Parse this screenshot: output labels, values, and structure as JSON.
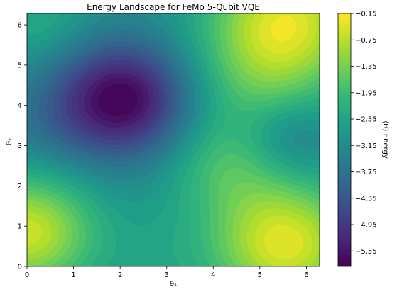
{
  "chart_data": {
    "type": "heatmap",
    "subtype": "filled-contour",
    "title": "Energy Landscape for FeMo 5-Qubit VQE",
    "xlabel": "θ₁",
    "ylabel": "θ₂",
    "colorbar_label": "⟨H⟩ Energy",
    "colormap": "viridis",
    "xlim": [
      0,
      6.283
    ],
    "ylim": [
      0,
      6.283
    ],
    "xticks": [
      "0",
      "1",
      "2",
      "3",
      "4",
      "5",
      "6"
    ],
    "yticks": [
      "0",
      "1",
      "2",
      "3",
      "4",
      "5",
      "6"
    ],
    "colorbar_ticks": [
      "−0.15",
      "−0.75",
      "−1.35",
      "−1.95",
      "−2.55",
      "−3.15",
      "−3.75",
      "−4.35",
      "−4.95",
      "−5.55"
    ],
    "colorbar_range": [
      -5.9,
      -0.15
    ],
    "minimum": {
      "x": 2.05,
      "y": 4.15,
      "value": -5.9
    },
    "maxima": [
      {
        "x": 0.0,
        "y": 0.85,
        "value": -0.15
      },
      {
        "x": 5.55,
        "y": 0.55,
        "value": -0.15
      },
      {
        "x": 5.6,
        "y": 6.15,
        "value": -0.15
      }
    ]
  },
  "colors": {
    "viridis": [
      "#440154",
      "#482878",
      "#3e4989",
      "#31688e",
      "#26828e",
      "#1f9e89",
      "#35b779",
      "#6ece58",
      "#b5de2b",
      "#fde725"
    ]
  }
}
